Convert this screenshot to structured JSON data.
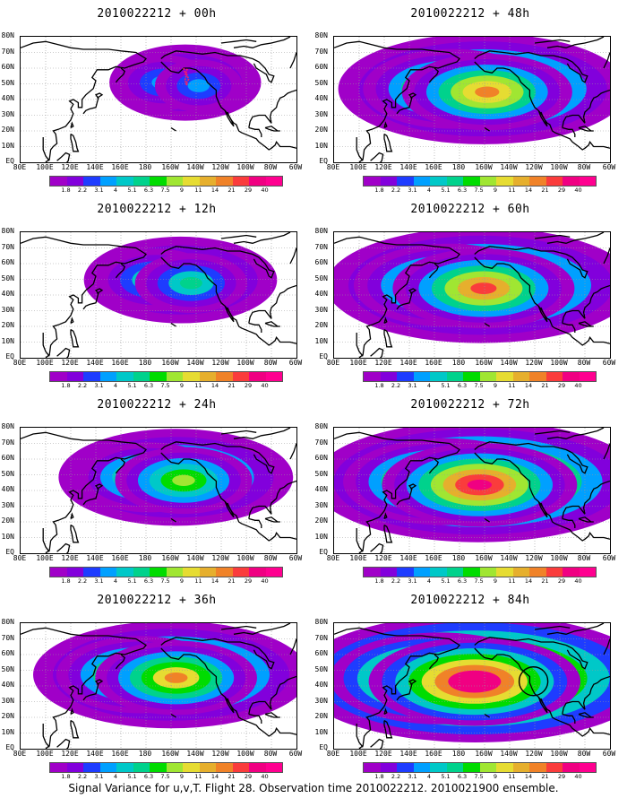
{
  "panels": [
    {
      "title": "2010022212 + 00h",
      "intensity": 0.15,
      "lead_hours": 0
    },
    {
      "title": "2010022212 + 12h",
      "intensity": 0.3,
      "lead_hours": 12
    },
    {
      "title": "2010022212 + 24h",
      "intensity": 0.45,
      "lead_hours": 24
    },
    {
      "title": "2010022212 + 36h",
      "intensity": 0.6,
      "lead_hours": 36
    },
    {
      "title": "2010022212 + 48h",
      "intensity": 0.65,
      "lead_hours": 48
    },
    {
      "title": "2010022212 + 60h",
      "intensity": 0.72,
      "lead_hours": 60
    },
    {
      "title": "2010022212 + 72h",
      "intensity": 0.8,
      "lead_hours": 72
    },
    {
      "title": "2010022212 + 84h",
      "intensity": 0.9,
      "lead_hours": 84
    }
  ],
  "lat_labels": [
    "80N",
    "70N",
    "60N",
    "50N",
    "40N",
    "30N",
    "20N",
    "10N",
    "EQ"
  ],
  "lon_labels": [
    "80E",
    "100E",
    "120E",
    "140E",
    "160E",
    "180",
    "160W",
    "140W",
    "120W",
    "100W",
    "80W",
    "60W"
  ],
  "colorbar": {
    "labels": [
      "1.8",
      "2.2",
      "3.1",
      "4",
      "5.1",
      "6.3",
      "7.5",
      "9",
      "11",
      "14",
      "21",
      "29",
      "40"
    ],
    "colors": [
      "#a000c8",
      "#8200dc",
      "#1e3cff",
      "#00a0ff",
      "#00c8c8",
      "#00d28c",
      "#00dc00",
      "#a0e632",
      "#e6dc32",
      "#e6af2d",
      "#f08228",
      "#fa3c3c",
      "#f00082"
    ]
  },
  "caption": "Signal Variance for u,v,T. Flight 28. Observation time 2010022212. 2010021900 ensemble."
}
